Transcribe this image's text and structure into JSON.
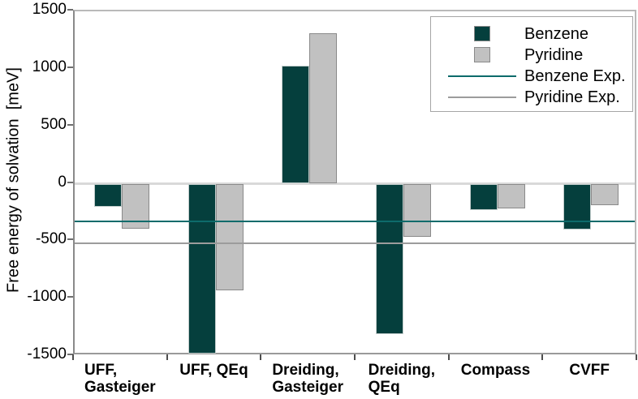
{
  "chart_data": {
    "type": "bar",
    "title": "",
    "xlabel": "",
    "ylabel": "Free energy of solvation  [meV]",
    "ylim": [
      -1500,
      1500
    ],
    "yticks": [
      1500,
      1000,
      500,
      0,
      -500,
      -1000,
      -1500
    ],
    "grid": "zero line only",
    "legend_position": "top-right inside plot, boxed",
    "categories": [
      "UFF,\nGasteiger",
      "UFF, QEq",
      "Dreiding,\nGasteiger",
      "Dreiding,\nQEq",
      "Compass",
      "CVFF"
    ],
    "series": [
      {
        "name": "Benzene",
        "color": "#053f3d",
        "values": [
          -200,
          -1480,
          1030,
          -1310,
          -230,
          -400
        ]
      },
      {
        "name": "Pyridine",
        "color": "#c1c1c1",
        "values": [
          -390,
          -930,
          1310,
          -460,
          -215,
          -190
        ]
      }
    ],
    "ref_lines": [
      {
        "name": "Benzene Exp.",
        "color": "#0d6b6b",
        "value": -330
      },
      {
        "name": "Pyridine Exp.",
        "color": "#9c9c9c",
        "value": -520
      }
    ]
  }
}
